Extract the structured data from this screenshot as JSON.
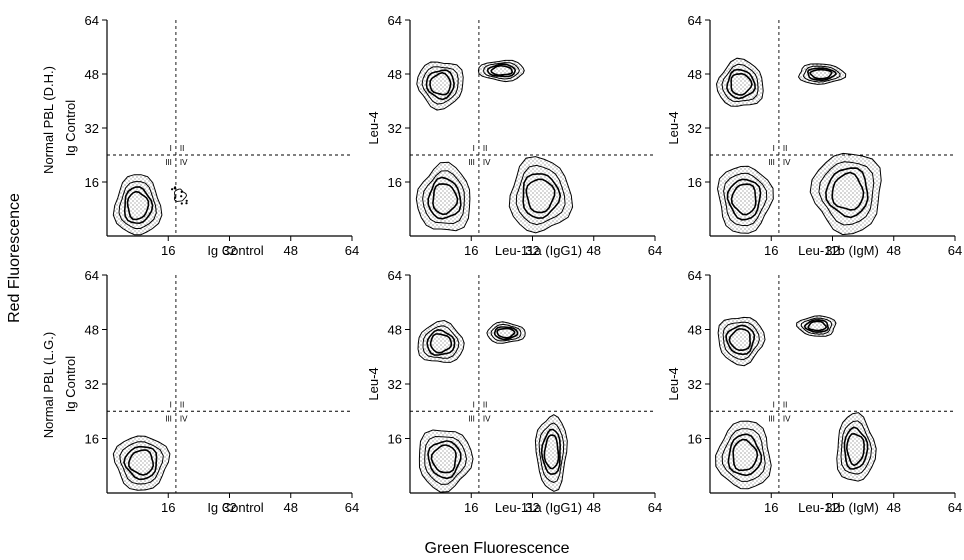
{
  "figure": {
    "y_title": "Red Fluorescence",
    "x_title": "Green Fluorescence",
    "row_labels": [
      "Normal PBL (D.H.)",
      "Normal PBL (L.G.)"
    ]
  },
  "chart_data": [
    {
      "type": "contour",
      "xlabel": "Ig Control",
      "ylabel": "Ig Control",
      "xlim": [
        0,
        64
      ],
      "ylim": [
        0,
        64
      ],
      "xticks": [
        16,
        32,
        48,
        64
      ],
      "yticks": [
        16,
        32,
        48,
        64
      ],
      "gates": {
        "x": 18,
        "y": 24
      },
      "quadrant_labels": [
        "I",
        "II",
        "III",
        "IV"
      ],
      "populations": [
        {
          "cx": 8,
          "cy": 9,
          "rx": 6,
          "ry": 9
        },
        {
          "cx": 19,
          "cy": 12,
          "rx": 2.5,
          "ry": 3,
          "sparse": true
        }
      ]
    },
    {
      "type": "contour",
      "xlabel": "Leu-11a (IgG1)",
      "ylabel": "Leu-4",
      "xlim": [
        0,
        64
      ],
      "ylim": [
        0,
        64
      ],
      "xticks": [
        16,
        32,
        48,
        64
      ],
      "yticks": [
        16,
        32,
        48,
        64
      ],
      "gates": {
        "x": 18,
        "y": 24
      },
      "quadrant_labels": [
        "I",
        "II",
        "III",
        "IV"
      ],
      "populations": [
        {
          "cx": 8,
          "cy": 45,
          "rx": 6,
          "ry": 7
        },
        {
          "cx": 24,
          "cy": 49,
          "rx": 6,
          "ry": 3
        },
        {
          "cx": 9,
          "cy": 11,
          "rx": 7,
          "ry": 10
        },
        {
          "cx": 34,
          "cy": 12,
          "rx": 8,
          "ry": 11
        }
      ]
    },
    {
      "type": "contour",
      "xlabel": "Leu-11b (IgM)",
      "ylabel": "Leu-4",
      "xlim": [
        0,
        64
      ],
      "ylim": [
        0,
        64
      ],
      "xticks": [
        16,
        32,
        48,
        64
      ],
      "yticks": [
        16,
        32,
        48,
        64
      ],
      "gates": {
        "x": 18,
        "y": 24
      },
      "quadrant_labels": [
        "I",
        "II",
        "III",
        "IV"
      ],
      "populations": [
        {
          "cx": 8,
          "cy": 45,
          "rx": 6,
          "ry": 7
        },
        {
          "cx": 29,
          "cy": 48,
          "rx": 6,
          "ry": 3
        },
        {
          "cx": 9,
          "cy": 11,
          "rx": 7,
          "ry": 10
        },
        {
          "cx": 36,
          "cy": 13,
          "rx": 9,
          "ry": 12
        }
      ]
    },
    {
      "type": "contour",
      "xlabel": "Ig Control",
      "ylabel": "Ig Control",
      "xlim": [
        0,
        64
      ],
      "ylim": [
        0,
        64
      ],
      "xticks": [
        16,
        32,
        48,
        64
      ],
      "yticks": [
        16,
        32,
        48,
        64
      ],
      "gates": {
        "x": 18,
        "y": 24
      },
      "quadrant_labels": [
        "I",
        "II",
        "III",
        "IV"
      ],
      "populations": [
        {
          "cx": 9,
          "cy": 9,
          "rx": 7,
          "ry": 8
        }
      ]
    },
    {
      "type": "contour",
      "xlabel": "Leu-11a (IgG1)",
      "ylabel": "Leu-4",
      "xlim": [
        0,
        64
      ],
      "ylim": [
        0,
        64
      ],
      "xticks": [
        16,
        32,
        48,
        64
      ],
      "yticks": [
        16,
        32,
        48,
        64
      ],
      "gates": {
        "x": 18,
        "y": 24
      },
      "quadrant_labels": [
        "I",
        "II",
        "III",
        "IV"
      ],
      "populations": [
        {
          "cx": 8,
          "cy": 44,
          "rx": 6,
          "ry": 6
        },
        {
          "cx": 25,
          "cy": 47,
          "rx": 5,
          "ry": 3
        },
        {
          "cx": 9,
          "cy": 10,
          "rx": 7,
          "ry": 9
        },
        {
          "cx": 37,
          "cy": 12,
          "rx": 4,
          "ry": 11
        }
      ]
    },
    {
      "type": "contour",
      "xlabel": "Leu-11b (IgM)",
      "ylabel": "Leu-4",
      "xlim": [
        0,
        64
      ],
      "ylim": [
        0,
        64
      ],
      "xticks": [
        16,
        32,
        48,
        64
      ],
      "yticks": [
        16,
        32,
        48,
        64
      ],
      "gates": {
        "x": 18,
        "y": 24
      },
      "quadrant_labels": [
        "I",
        "II",
        "III",
        "IV"
      ],
      "populations": [
        {
          "cx": 8,
          "cy": 45,
          "rx": 6,
          "ry": 7
        },
        {
          "cx": 28,
          "cy": 49,
          "rx": 5,
          "ry": 3
        },
        {
          "cx": 9,
          "cy": 11,
          "rx": 7,
          "ry": 10
        },
        {
          "cx": 38,
          "cy": 13,
          "rx": 5,
          "ry": 10
        }
      ]
    }
  ]
}
